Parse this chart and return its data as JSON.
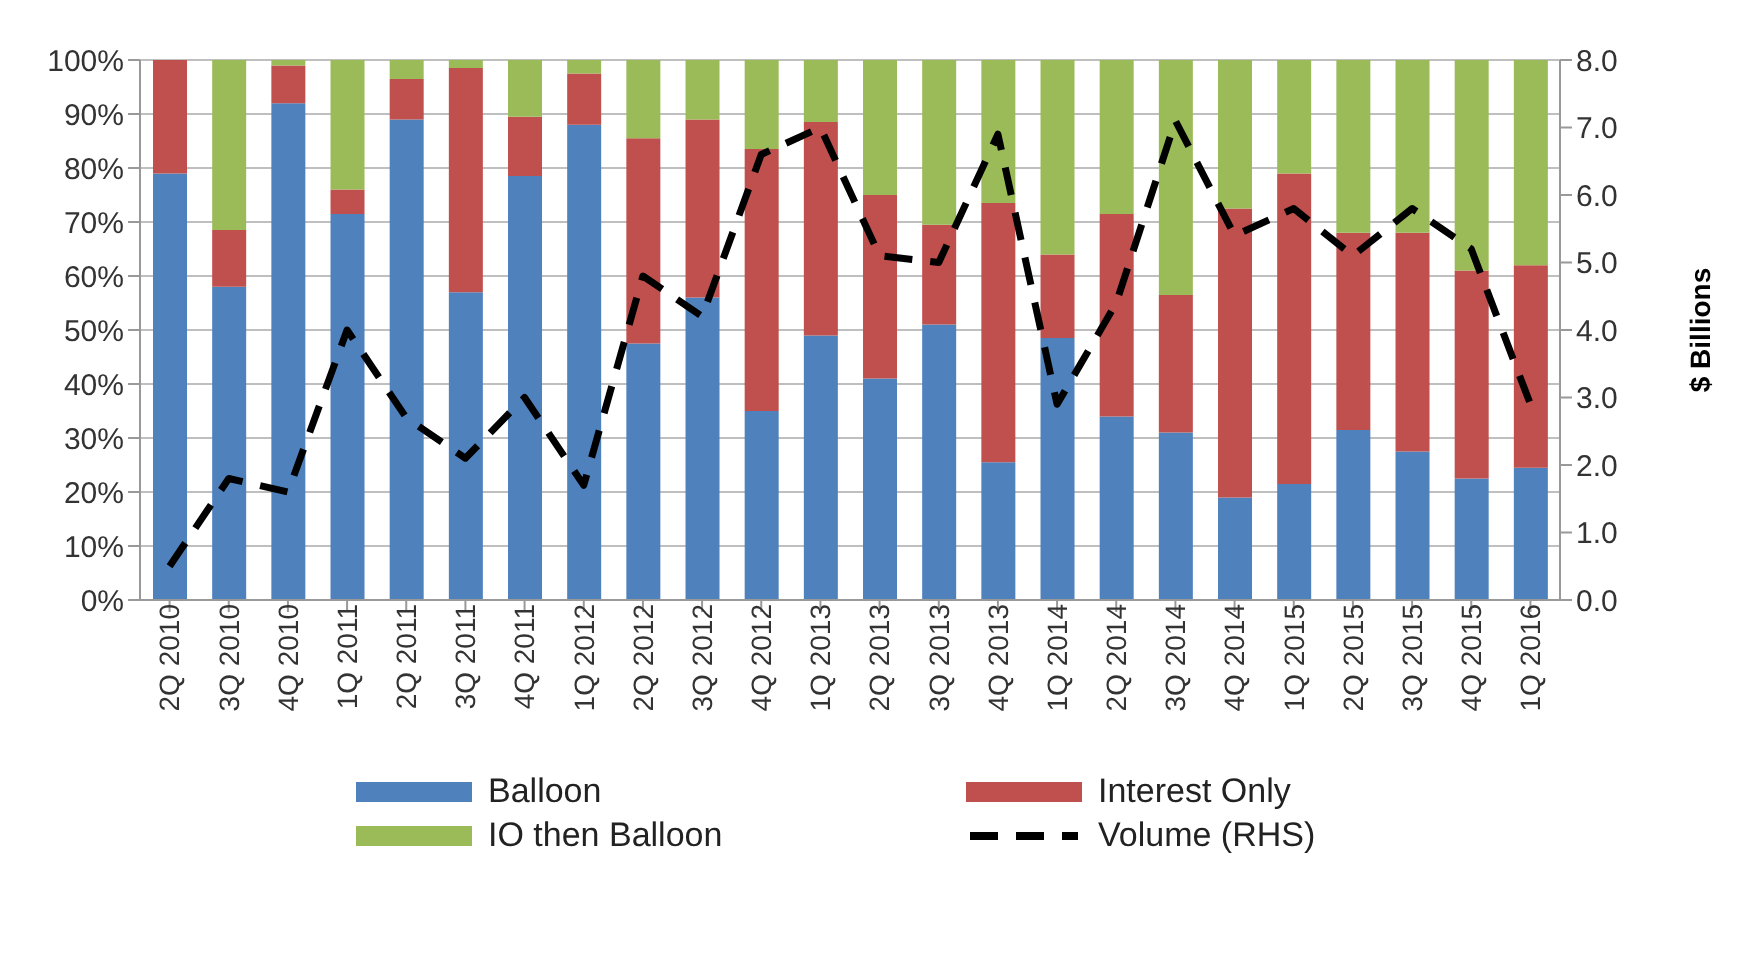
{
  "chart_data": {
    "type": "bar",
    "stacked": true,
    "y2label": "$ Billions",
    "categories": [
      "2Q 2010",
      "3Q 2010",
      "4Q 2010",
      "1Q 2011",
      "2Q 2011",
      "3Q 2011",
      "4Q 2011",
      "1Q 2012",
      "2Q 2012",
      "3Q 2012",
      "4Q 2012",
      "1Q 2013",
      "2Q 2013",
      "3Q 2013",
      "4Q 2013",
      "1Q 2014",
      "2Q 2014",
      "3Q 2014",
      "4Q 2014",
      "1Q 2015",
      "2Q 2015",
      "3Q 2015",
      "4Q 2015",
      "1Q 2016"
    ],
    "series": [
      {
        "name": "Balloon",
        "color": "#4f81bd",
        "values": [
          79,
          58,
          92,
          71.5,
          89,
          57,
          78.5,
          88,
          47.5,
          56,
          35,
          49,
          41,
          51,
          25.5,
          48.5,
          34,
          31,
          19,
          21.5,
          31.5,
          27.5,
          22.5,
          24.5
        ]
      },
      {
        "name": "Interest Only",
        "color": "#c0504d",
        "values": [
          21,
          10.5,
          7,
          4.5,
          7.5,
          41.5,
          11,
          9.5,
          38,
          33,
          48.5,
          39.5,
          34,
          18.5,
          48,
          15.5,
          37.5,
          25.5,
          53.5,
          57.5,
          36.5,
          40.5,
          38.5,
          37.5
        ]
      },
      {
        "name": "IO then Balloon",
        "color": "#9bbb59",
        "values": [
          0,
          31.5,
          1,
          24,
          3.5,
          1.5,
          10.5,
          2.5,
          14.5,
          11,
          16.5,
          11.5,
          25,
          30.5,
          26.5,
          36,
          28.5,
          43.5,
          27.5,
          21,
          32,
          32,
          39,
          38
        ]
      },
      {
        "name": "Volume (RHS)",
        "type": "line",
        "axis": "y2",
        "color": "#000000",
        "line_style": "dashed",
        "values": [
          0.5,
          1.8,
          1.6,
          4.0,
          2.7,
          2.1,
          3.0,
          1.7,
          4.8,
          4.2,
          6.6,
          7.0,
          5.1,
          5.0,
          6.9,
          2.9,
          4.4,
          7.1,
          5.4,
          5.8,
          5.1,
          5.8,
          5.2,
          2.9
        ]
      }
    ],
    "ylim": [
      0,
      100
    ],
    "yticks": [
      {
        "value": 0,
        "label": "0%"
      },
      {
        "value": 10,
        "label": "10%"
      },
      {
        "value": 20,
        "label": "20%"
      },
      {
        "value": 30,
        "label": "30%"
      },
      {
        "value": 40,
        "label": "40%"
      },
      {
        "value": 50,
        "label": "50%"
      },
      {
        "value": 60,
        "label": "60%"
      },
      {
        "value": 70,
        "label": "70%"
      },
      {
        "value": 80,
        "label": "80%"
      },
      {
        "value": 90,
        "label": "90%"
      },
      {
        "value": 100,
        "label": "100%"
      }
    ],
    "y2lim": [
      0,
      8
    ],
    "y2ticks": [
      {
        "value": 0,
        "label": "0.0"
      },
      {
        "value": 1,
        "label": "1.0"
      },
      {
        "value": 2,
        "label": "2.0"
      },
      {
        "value": 3,
        "label": "3.0"
      },
      {
        "value": 4,
        "label": "4.0"
      },
      {
        "value": 5,
        "label": "5.0"
      },
      {
        "value": 6,
        "label": "6.0"
      },
      {
        "value": 7,
        "label": "7.0"
      },
      {
        "value": 8,
        "label": "8.0"
      }
    ],
    "grid": "y",
    "legend": "bottom",
    "marker": "none"
  }
}
